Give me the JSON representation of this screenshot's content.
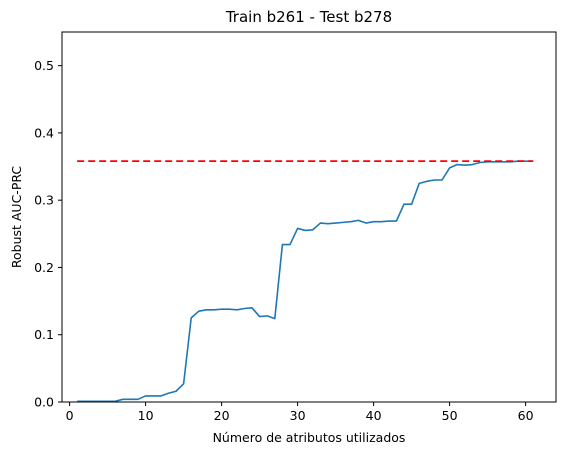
{
  "chart_data": {
    "type": "line",
    "title": "Train b261 - Test b278",
    "xlabel": "Número de atributos utilizados",
    "ylabel": "Robust AUC-PRC",
    "xlim": [
      -1.0,
      64.0
    ],
    "ylim": [
      0.0,
      0.55
    ],
    "xticks": [
      0,
      10,
      20,
      30,
      40,
      50,
      60
    ],
    "yticks": [
      0.0,
      0.1,
      0.2,
      0.3,
      0.4,
      0.5
    ],
    "xtick_labels": [
      "0",
      "10",
      "20",
      "30",
      "40",
      "50",
      "60"
    ],
    "ytick_labels": [
      "0.0",
      "0.1",
      "0.2",
      "0.3",
      "0.4",
      "0.5"
    ],
    "grid": false,
    "series": [
      {
        "color": "#1f77b4",
        "style": "solid",
        "x": [
          1,
          2,
          3,
          4,
          5,
          6,
          7,
          8,
          9,
          10,
          11,
          12,
          13,
          14,
          15,
          16,
          17,
          18,
          19,
          20,
          21,
          22,
          23,
          24,
          25,
          26,
          27,
          28,
          29,
          30,
          31,
          32,
          33,
          34,
          35,
          36,
          37,
          38,
          39,
          40,
          41,
          42,
          43,
          44,
          45,
          46,
          47,
          48,
          49,
          50,
          51,
          52,
          53,
          54,
          55,
          56,
          57,
          58,
          59,
          60,
          61
        ],
        "y": [
          0.001,
          0.001,
          0.001,
          0.001,
          0.001,
          0.001,
          0.004,
          0.004,
          0.004,
          0.009,
          0.009,
          0.009,
          0.013,
          0.016,
          0.027,
          0.125,
          0.135,
          0.137,
          0.137,
          0.138,
          0.138,
          0.137,
          0.139,
          0.14,
          0.127,
          0.128,
          0.124,
          0.234,
          0.234,
          0.258,
          0.255,
          0.256,
          0.266,
          0.265,
          0.266,
          0.267,
          0.268,
          0.27,
          0.266,
          0.268,
          0.268,
          0.269,
          0.269,
          0.294,
          0.294,
          0.325,
          0.328,
          0.33,
          0.33,
          0.348,
          0.353,
          0.352,
          0.353,
          0.356,
          0.357,
          0.357,
          0.357,
          0.357,
          0.358,
          0.358,
          0.358
        ]
      },
      {
        "color": "#ff0000",
        "style": "dashed",
        "x": [
          1,
          61
        ],
        "y": [
          0.358,
          0.358
        ]
      }
    ]
  }
}
